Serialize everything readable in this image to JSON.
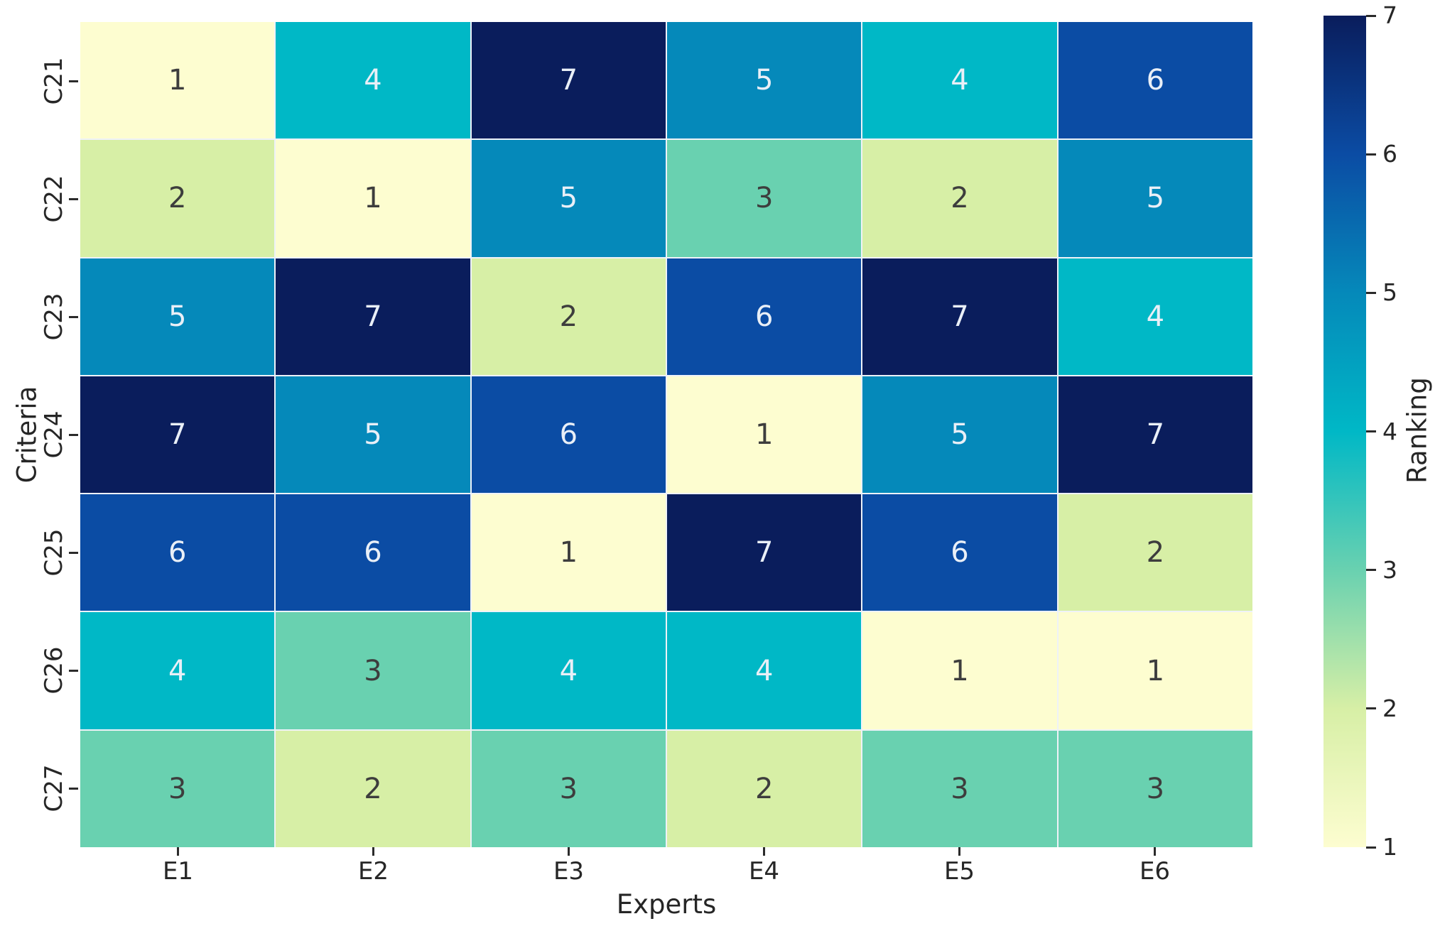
{
  "chart_data": {
    "type": "heatmap",
    "title": "",
    "xlabel": "Experts",
    "ylabel": "Criteria",
    "colorbar_label": "Ranking",
    "colormap_name": "YlGnBu",
    "x_categories": [
      "E1",
      "E2",
      "E3",
      "E4",
      "E5",
      "E6"
    ],
    "y_categories": [
      "C21",
      "C22",
      "C23",
      "C24",
      "C25",
      "C26",
      "C27"
    ],
    "values": [
      [
        1,
        4,
        7,
        5,
        4,
        6
      ],
      [
        2,
        1,
        5,
        3,
        2,
        5
      ],
      [
        5,
        7,
        2,
        6,
        7,
        4
      ],
      [
        7,
        5,
        6,
        1,
        5,
        7
      ],
      [
        6,
        6,
        1,
        7,
        6,
        2
      ],
      [
        4,
        3,
        4,
        4,
        1,
        1
      ],
      [
        3,
        2,
        3,
        2,
        3,
        3
      ]
    ],
    "vmin": 1,
    "vmax": 7,
    "colorbar_ticks": [
      7,
      6,
      5,
      4,
      3,
      2,
      1
    ],
    "value_colors": {
      "1": "#fdfdd0",
      "2": "#d7efa6",
      "3": "#69d1b0",
      "4": "#00b8c6",
      "5": "#0589ba",
      "6": "#0b4ca4",
      "7": "#0a1d5c"
    },
    "annotation_text_dark": "#3d3d3d",
    "annotation_text_light": "#e9eff7",
    "light_text_from_value": 4,
    "grid_line_color": "#eef2f8",
    "legend_position": "right",
    "grid": "off"
  }
}
